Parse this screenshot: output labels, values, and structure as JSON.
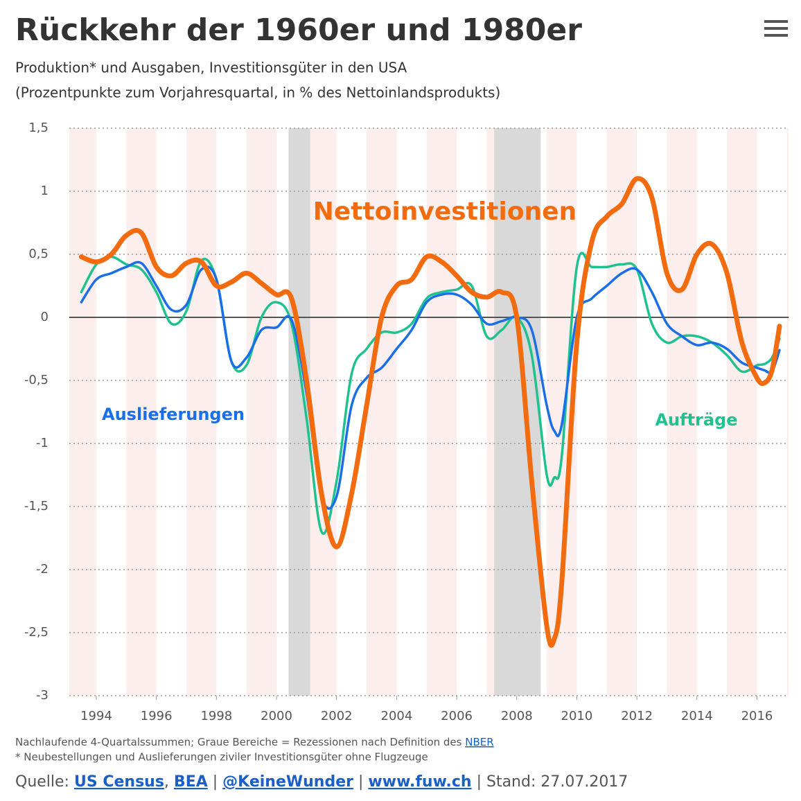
{
  "chart_data": {
    "type": "line",
    "title": "Rückkehr der 1960er und 1980er",
    "subtitle": [
      "Produktion* und Ausgaben, Investitionsgüter in den USA",
      "(Prozentpunkte zum Vorjahresquartal, in % des Nettoinlandsprodukts)"
    ],
    "x": [
      1993.5,
      1994,
      1994.5,
      1995,
      1995.5,
      1996,
      1996.5,
      1997,
      1997.5,
      1998,
      1998.5,
      1999,
      1999.5,
      2000,
      2000.5,
      2001,
      2001.5,
      2002,
      2002.5,
      2003,
      2003.5,
      2004,
      2004.5,
      2005,
      2005.5,
      2006,
      2006.5,
      2007,
      2007.5,
      2008,
      2008.5,
      2009,
      2009.25,
      2009.5,
      2010,
      2010.5,
      2011,
      2011.5,
      2012,
      2012.5,
      2013,
      2013.5,
      2014,
      2014.5,
      2015,
      2015.5,
      2016,
      2016.25,
      2016.5,
      2016.75
    ],
    "series": [
      {
        "name": "Aufträge",
        "color": "#1fc28f",
        "values": [
          0.2,
          0.42,
          0.48,
          0.42,
          0.38,
          0.2,
          -0.05,
          0.05,
          0.45,
          0.3,
          -0.35,
          -0.38,
          0.0,
          0.12,
          -0.05,
          -0.8,
          -1.7,
          -1.3,
          -0.45,
          -0.25,
          -0.12,
          -0.12,
          -0.05,
          0.15,
          0.2,
          0.22,
          0.25,
          -0.15,
          -0.1,
          0.0,
          -0.3,
          -1.25,
          -1.27,
          -1.1,
          0.4,
          0.4,
          0.4,
          0.42,
          0.38,
          -0.05,
          -0.2,
          -0.15,
          -0.15,
          -0.2,
          -0.3,
          -0.43,
          -0.38,
          -0.37,
          -0.32,
          -0.17
        ]
      },
      {
        "name": "Auslieferungen",
        "color": "#1a6fe8",
        "values": [
          0.12,
          0.3,
          0.35,
          0.4,
          0.43,
          0.25,
          0.06,
          0.1,
          0.38,
          0.3,
          -0.35,
          -0.32,
          -0.1,
          -0.08,
          -0.02,
          -0.6,
          -1.42,
          -1.42,
          -0.7,
          -0.48,
          -0.4,
          -0.25,
          -0.1,
          0.12,
          0.18,
          0.18,
          0.1,
          -0.05,
          -0.03,
          0.0,
          -0.1,
          -0.7,
          -0.9,
          -0.85,
          0.0,
          0.15,
          0.25,
          0.35,
          0.38,
          0.2,
          -0.05,
          -0.15,
          -0.22,
          -0.2,
          -0.25,
          -0.36,
          -0.4,
          -0.42,
          -0.43,
          -0.26
        ]
      },
      {
        "name": "Nettoinvestitionen",
        "color": "#f26b0f",
        "values": [
          0.48,
          0.44,
          0.5,
          0.65,
          0.67,
          0.4,
          0.33,
          0.43,
          0.44,
          0.25,
          0.28,
          0.35,
          0.27,
          0.18,
          0.15,
          -0.5,
          -1.4,
          -1.82,
          -1.4,
          -0.7,
          0.0,
          0.25,
          0.3,
          0.48,
          0.44,
          0.33,
          0.2,
          0.16,
          0.2,
          0.0,
          -1.3,
          -2.45,
          -2.55,
          -2.1,
          -0.2,
          0.6,
          0.8,
          0.9,
          1.1,
          0.95,
          0.35,
          0.22,
          0.5,
          0.58,
          0.35,
          -0.2,
          -0.48,
          -0.52,
          -0.42,
          -0.07
        ]
      }
    ],
    "recessions": [
      [
        2000.4,
        2001.12
      ],
      [
        2007.25,
        2008.8
      ]
    ],
    "xlim": [
      1993.1,
      2017.05
    ],
    "xticks": [
      1994,
      1996,
      1998,
      2000,
      2002,
      2004,
      2006,
      2008,
      2010,
      2012,
      2014,
      2016
    ],
    "ylim": [
      -3,
      1.5
    ],
    "yticks": [
      {
        "value": 1.5,
        "label": "1,5"
      },
      1,
      {
        "value": 0.5,
        "label": "0,5"
      },
      0,
      {
        "value": -0.5,
        "label": "-0,5"
      },
      -1,
      {
        "value": -1.5,
        "label": "-1,5"
      },
      -2,
      {
        "value": -2.5,
        "label": "-2,5"
      },
      -3
    ],
    "grid": true,
    "notes": [
      "Nachlaufende 4-Quartalssummen; Graue Bereiche = Rezessionen nach Definition des",
      "* Neubestellungen und Auslieferungen ziviler Investitionsgüter ohne Flugzeuge"
    ],
    "notes_link": "NBER",
    "source": {
      "prefix": "Quelle:",
      "parts": [
        "US Census",
        ",",
        "BEA",
        "|",
        "@KeineWunder",
        "|",
        "www.fuw.ch",
        "|",
        "Stand: 27.07.2017"
      ]
    }
  }
}
